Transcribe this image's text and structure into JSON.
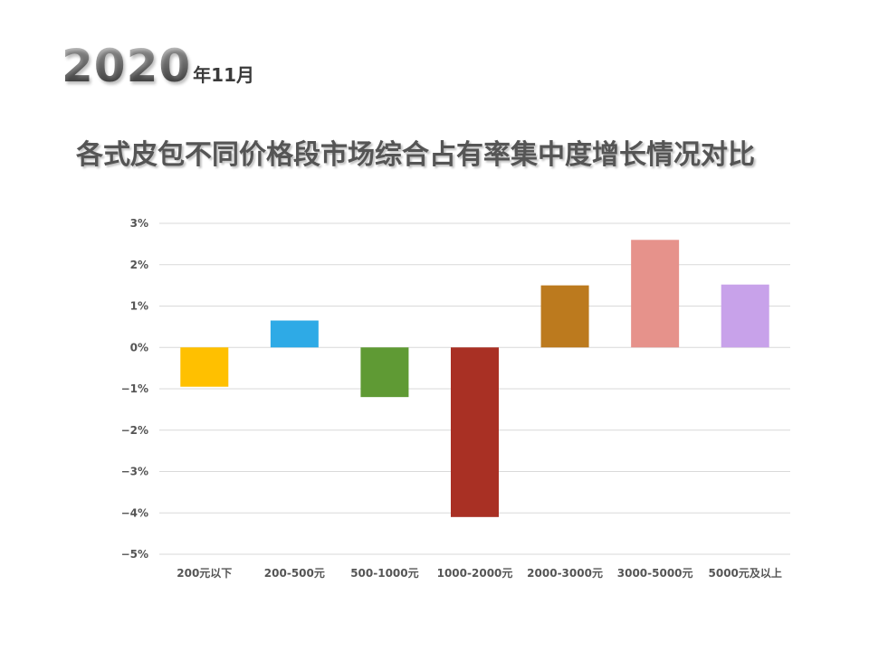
{
  "header": {
    "year": "2020",
    "year_suffix": "年11月"
  },
  "chart_data": {
    "type": "bar",
    "title": "各式皮包不同价格段市场综合占有率集中度增长情况对比",
    "categories": [
      "200元以下",
      "200-500元",
      "500-1000元",
      "1000-2000元",
      "2000-3000元",
      "3000-5000元",
      "5000元及以上"
    ],
    "values": [
      -0.95,
      0.65,
      -1.2,
      -4.1,
      1.5,
      2.6,
      1.52
    ],
    "colors": [
      "#ffc000",
      "#2eaae6",
      "#5f9a34",
      "#a93024",
      "#bc7a1e",
      "#e6928b",
      "#c8a2ea"
    ],
    "ylim": [
      -5,
      3
    ],
    "yticks": [
      3,
      2,
      1,
      0,
      -1,
      -2,
      -3,
      -4,
      -5
    ],
    "ytick_labels": [
      "3%",
      "2%",
      "1%",
      "0%",
      "−1%",
      "−2%",
      "−3%",
      "−4%",
      "−5%"
    ],
    "xlabel": "",
    "ylabel": "",
    "grid": true,
    "legend": "none"
  }
}
